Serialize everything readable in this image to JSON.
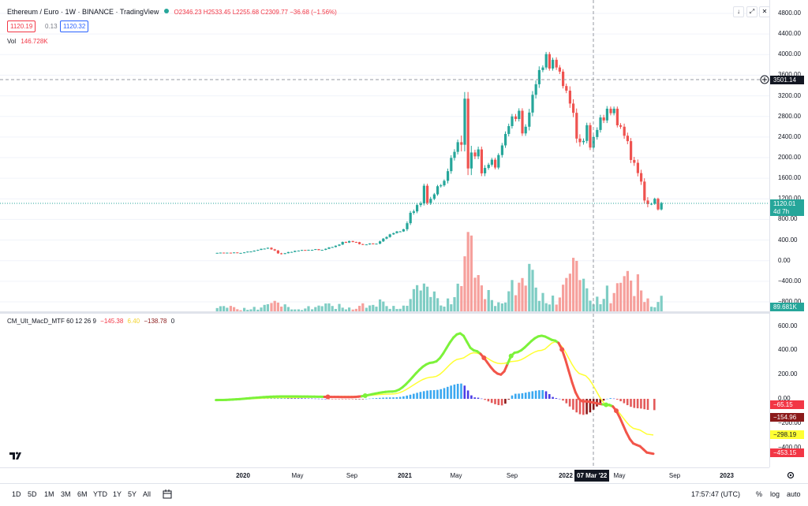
{
  "header": {
    "symbol": "Ethereum / Euro · 1W · BINANCE · TradingView",
    "ohlc": "O2346.23 H2533.45 L2255.68 C2309.77 −36.68 (−1.56%)",
    "bid": "1120.19",
    "spread": "0.13",
    "ask": "1120.32",
    "volume_label": "Vol",
    "volume_value": "146.728K"
  },
  "indicator": {
    "name": "CM_Ult_MacD_MTF 60 12 26 9",
    "v1": "−145.38",
    "v2": "6.40",
    "v3": "−138.78",
    "v4": "0"
  },
  "price_axis": {
    "labels": [
      "4800.00",
      "4400.00",
      "4000.00",
      "3600.00",
      "3200.00",
      "2800.00",
      "2400.00",
      "2000.00",
      "1600.00",
      "1200.00",
      "800.00",
      "400.00",
      "0.00",
      "−400.00",
      "−800.00"
    ],
    "crosshair_value": "3501.14",
    "last_price": "1120.01",
    "countdown": "4d 7h",
    "volume_tag": "89.681K"
  },
  "macd_axis": {
    "labels": [
      "600.00",
      "400.00",
      "200.00",
      "0.00",
      "−200.00",
      "−400.00"
    ],
    "tags": [
      "−65.15",
      "−154.96",
      "−298.19",
      "−453.15"
    ]
  },
  "time_axis": {
    "labels": [
      "2020",
      "May",
      "Sep",
      "2021",
      "May",
      "Sep",
      "2022",
      "May",
      "Sep",
      "2023"
    ],
    "crosshair_date": "07 Mar '22"
  },
  "bottom_bar": {
    "ranges": [
      "1D",
      "5D",
      "1M",
      "3M",
      "6M",
      "YTD",
      "1Y",
      "5Y",
      "All"
    ],
    "clock": "17:57:47 (UTC)",
    "percent": "%",
    "log": "log",
    "auto": "auto"
  },
  "colors": {
    "up": "#26a69a",
    "down": "#ef5350",
    "macd_up": "#7cf23a",
    "macd_down": "#f2554a",
    "signal": "#ffff33",
    "hist_pos_strong": "#3ba8f0",
    "hist_pos_weak": "#4b3ee6",
    "hist_neg_strong": "#e35a5a",
    "hist_neg_weak": "#8b1a1a"
  },
  "chart_data": {
    "type": "candlestick",
    "price_series": [
      {
        "t": "2019-11",
        "o": 150,
        "h": 160,
        "l": 140,
        "c": 155
      },
      {
        "t": "2019-12",
        "o": 155,
        "h": 165,
        "l": 145,
        "c": 150
      },
      {
        "t": "2020-01",
        "o": 150,
        "h": 200,
        "l": 140,
        "c": 195
      },
      {
        "t": "2020-02",
        "o": 195,
        "h": 260,
        "l": 190,
        "c": 250
      },
      {
        "t": "2020-03",
        "o": 250,
        "h": 260,
        "l": 100,
        "c": 130
      },
      {
        "t": "2020-04",
        "o": 130,
        "h": 200,
        "l": 120,
        "c": 190
      },
      {
        "t": "2020-05",
        "o": 190,
        "h": 220,
        "l": 180,
        "c": 210
      },
      {
        "t": "2020-06",
        "o": 210,
        "h": 230,
        "l": 200,
        "c": 210
      },
      {
        "t": "2020-07",
        "o": 210,
        "h": 300,
        "l": 200,
        "c": 290
      },
      {
        "t": "2020-08",
        "o": 290,
        "h": 420,
        "l": 280,
        "c": 380
      },
      {
        "t": "2020-09",
        "o": 380,
        "h": 400,
        "l": 300,
        "c": 310
      },
      {
        "t": "2020-10",
        "o": 310,
        "h": 350,
        "l": 300,
        "c": 330
      },
      {
        "t": "2020-11",
        "o": 330,
        "h": 520,
        "l": 320,
        "c": 510
      },
      {
        "t": "2020-12",
        "o": 510,
        "h": 620,
        "l": 480,
        "c": 610
      },
      {
        "t": "2021-01",
        "o": 610,
        "h": 1200,
        "l": 600,
        "c": 1080
      },
      {
        "t": "2021-02",
        "o": 1080,
        "h": 1650,
        "l": 1000,
        "c": 1200
      },
      {
        "t": "2021-03",
        "o": 1200,
        "h": 1650,
        "l": 1200,
        "c": 1550
      },
      {
        "t": "2021-04",
        "o": 1550,
        "h": 2400,
        "l": 1550,
        "c": 2300
      },
      {
        "t": "2021-05",
        "o": 2300,
        "h": 3650,
        "l": 1500,
        "c": 2100
      },
      {
        "t": "2021-06",
        "o": 2100,
        "h": 2400,
        "l": 1500,
        "c": 1800
      },
      {
        "t": "2021-07",
        "o": 1800,
        "h": 2100,
        "l": 1500,
        "c": 2050
      },
      {
        "t": "2021-08",
        "o": 2050,
        "h": 2850,
        "l": 2050,
        "c": 2800
      },
      {
        "t": "2021-09",
        "o": 2800,
        "h": 3100,
        "l": 2300,
        "c": 2600
      },
      {
        "t": "2021-10",
        "o": 2600,
        "h": 3800,
        "l": 2600,
        "c": 3700
      },
      {
        "t": "2021-11",
        "o": 3700,
        "h": 4200,
        "l": 3500,
        "c": 3900
      },
      {
        "t": "2021-12",
        "o": 3900,
        "h": 4000,
        "l": 3200,
        "c": 3300
      },
      {
        "t": "2022-01",
        "o": 3300,
        "h": 3400,
        "l": 2000,
        "c": 2300
      },
      {
        "t": "2022-02",
        "o": 2300,
        "h": 2800,
        "l": 2000,
        "c": 2400
      },
      {
        "t": "2022-03",
        "o": 2400,
        "h": 3100,
        "l": 2250,
        "c": 2950
      },
      {
        "t": "2022-04",
        "o": 2950,
        "h": 3200,
        "l": 2500,
        "c": 2600
      },
      {
        "t": "2022-05",
        "o": 2600,
        "h": 2700,
        "l": 1700,
        "c": 1900
      },
      {
        "t": "2022-06",
        "o": 1900,
        "h": 1950,
        "l": 880,
        "c": 1100
      },
      {
        "t": "2022-07",
        "o": 1100,
        "h": 1250,
        "l": 900,
        "c": 1120
      }
    ],
    "macd_series": [
      {
        "t": "2019-11",
        "macd": -10,
        "signal": -10
      },
      {
        "t": "2020-04",
        "macd": 20,
        "signal": 10
      },
      {
        "t": "2020-09",
        "macd": 15,
        "signal": 20
      },
      {
        "t": "2020-12",
        "macd": 60,
        "signal": 40
      },
      {
        "t": "2021-03",
        "macd": 300,
        "signal": 180
      },
      {
        "t": "2021-05",
        "macd": 540,
        "signal": 330
      },
      {
        "t": "2021-06",
        "macd": 400,
        "signal": 380
      },
      {
        "t": "2021-08",
        "macd": 200,
        "signal": 290
      },
      {
        "t": "2021-09",
        "macd": 380,
        "signal": 310
      },
      {
        "t": "2021-11",
        "macd": 520,
        "signal": 400
      },
      {
        "t": "2021-12",
        "macd": 480,
        "signal": 470
      },
      {
        "t": "2022-02",
        "macd": -20,
        "signal": 200
      },
      {
        "t": "2022-04",
        "macd": -50,
        "signal": -60
      },
      {
        "t": "2022-06",
        "macd": -380,
        "signal": -250
      },
      {
        "t": "2022-07",
        "macd": -453,
        "signal": -298
      }
    ],
    "ylim_price": [
      -800,
      4800
    ],
    "ylim_macd": [
      -500,
      650
    ]
  }
}
